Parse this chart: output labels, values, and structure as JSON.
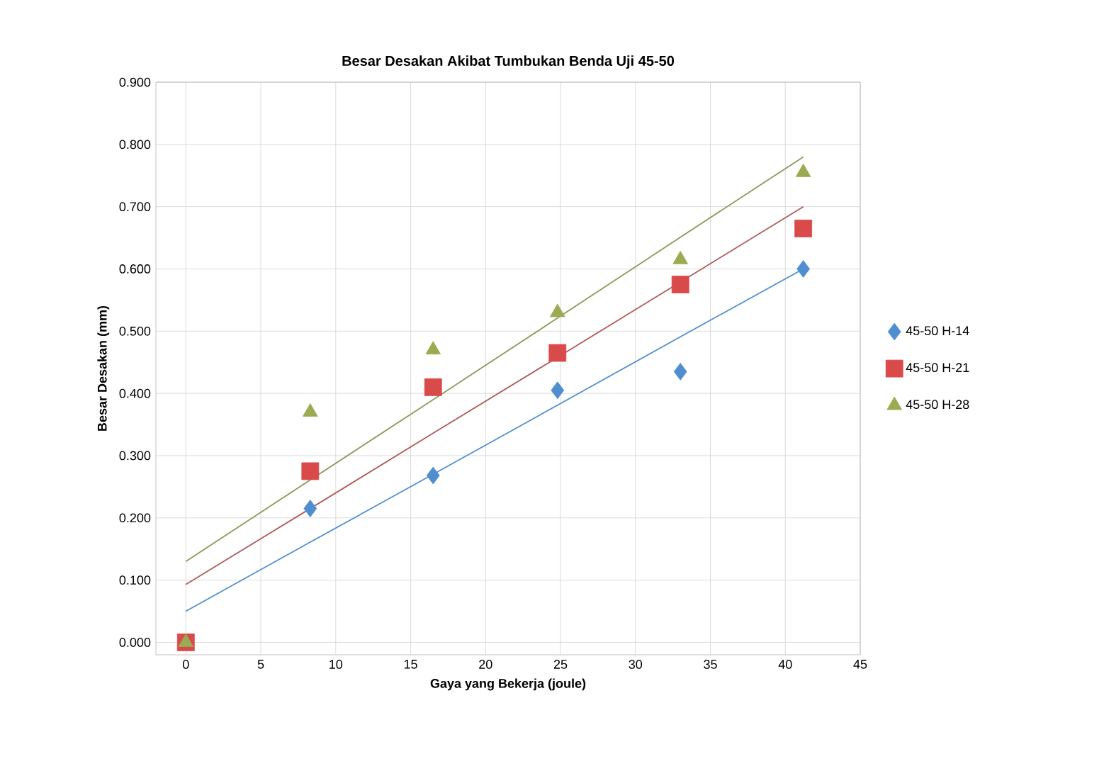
{
  "chart_data": {
    "type": "scatter",
    "title": "Besar Desakan Akibat Tumbukan Benda Uji 45-50",
    "xlabel": "Gaya yang Bekerja (joule)",
    "ylabel": "Besar Desakan (mm)",
    "x": [
      0,
      8.3,
      16.5,
      24.8,
      33,
      41.2
    ],
    "series": [
      {
        "name": "45-50 H-14",
        "color": "#4f8fcf",
        "marker": "diamond",
        "values": [
          null,
          0.215,
          0.268,
          0.405,
          0.435,
          0.6
        ]
      },
      {
        "name": "45-50 H-21",
        "color": "#d94a4a",
        "marker": "square",
        "values": [
          0,
          0.275,
          0.41,
          0.465,
          0.575,
          0.665
        ]
      },
      {
        "name": "45-50 H-28",
        "color": "#9bab52",
        "marker": "triangle",
        "values": [
          0,
          0.37,
          0.47,
          0.53,
          0.615,
          0.755
        ]
      },
      {
        "type": "line",
        "color": "#4f8fcf",
        "values": [
          0.05,
          0.161,
          0.27,
          0.381,
          0.491,
          0.6
        ]
      },
      {
        "type": "line",
        "color": "#b05a5a",
        "values": [
          0.093,
          0.215,
          0.336,
          0.458,
          0.579,
          0.7
        ]
      },
      {
        "type": "line",
        "color": "#8a9a5a",
        "values": [
          0.13,
          0.261,
          0.39,
          0.521,
          0.651,
          0.78
        ]
      }
    ],
    "xlim": [
      -2,
      45
    ],
    "xticks": [
      0,
      5,
      10,
      15,
      20,
      25,
      30,
      35,
      40,
      45
    ],
    "ylim": [
      -0.02,
      0.9
    ],
    "yticks": [
      {
        "value": 0,
        "label": "0.000"
      },
      {
        "value": 0.1,
        "label": "0.100"
      },
      {
        "value": 0.2,
        "label": "0.200"
      },
      {
        "value": 0.3,
        "label": "0.300"
      },
      {
        "value": 0.4,
        "label": "0.400"
      },
      {
        "value": 0.5,
        "label": "0.500"
      },
      {
        "value": 0.6,
        "label": "0.600"
      },
      {
        "value": 0.7,
        "label": "0.700"
      },
      {
        "value": 0.8,
        "label": "0.800"
      },
      {
        "value": 0.9,
        "label": "0.900"
      }
    ],
    "grid": true,
    "legend": "right"
  }
}
